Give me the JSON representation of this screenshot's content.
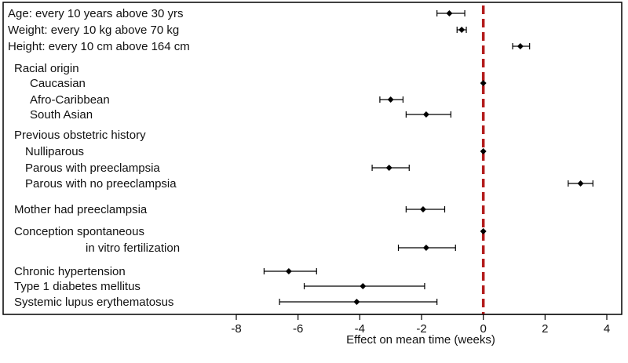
{
  "chart_data": {
    "type": "forest",
    "xlabel": "Effect on mean time (weeks)",
    "xlim": [
      -8,
      4
    ],
    "xticks": [
      -8,
      -6,
      -4,
      -2,
      0,
      2,
      4
    ],
    "reference_line": 0,
    "rows": [
      {
        "label": "Age: every 10 years above 30 yrs",
        "estimate": -1.1,
        "lower": -1.5,
        "upper": -0.6
      },
      {
        "label": "Weight: every 10 kg above 70 kg",
        "estimate": -0.7,
        "lower": -0.85,
        "upper": -0.55
      },
      {
        "label": "Height: every 10 cm above 164 cm",
        "estimate": 1.2,
        "lower": 0.95,
        "upper": 1.5
      },
      {
        "label": "Racial origin",
        "estimate": null,
        "lower": null,
        "upper": null
      },
      {
        "label": "Caucasian",
        "estimate": 0,
        "lower": 0,
        "upper": 0
      },
      {
        "label": "Afro-Caribbean",
        "estimate": -3.0,
        "lower": -3.35,
        "upper": -2.6
      },
      {
        "label": "South Asian",
        "estimate": -1.85,
        "lower": -2.5,
        "upper": -1.05
      },
      {
        "label": "Previous obstetric history",
        "estimate": null,
        "lower": null,
        "upper": null
      },
      {
        "label": "Nulliparous",
        "estimate": 0,
        "lower": 0,
        "upper": 0
      },
      {
        "label": "Parous with preeclampsia",
        "estimate": -3.05,
        "lower": -3.6,
        "upper": -2.4
      },
      {
        "label": "Parous with no preeclampsia",
        "estimate": 3.15,
        "lower": 2.75,
        "upper": 3.55
      },
      {
        "label": "Mother had preeclampsia",
        "estimate": -1.95,
        "lower": -2.5,
        "upper": -1.25
      },
      {
        "label": "Conception spontaneous",
        "estimate": 0,
        "lower": 0,
        "upper": 0
      },
      {
        "label": "in vitro fertilization",
        "estimate": -1.85,
        "lower": -2.75,
        "upper": -0.9
      },
      {
        "label": "Chronic hypertension",
        "estimate": -6.3,
        "lower": -7.1,
        "upper": -5.4
      },
      {
        "label": "Type 1 diabetes mellitus",
        "estimate": -3.9,
        "lower": -5.8,
        "upper": -1.9
      },
      {
        "label": "Systemic lupus erythematosus",
        "estimate": -4.1,
        "lower": -6.6,
        "upper": -1.5
      }
    ]
  },
  "colors": {
    "reference_line": "#b31b1b",
    "marker": "#000000",
    "frame": "#000000"
  }
}
